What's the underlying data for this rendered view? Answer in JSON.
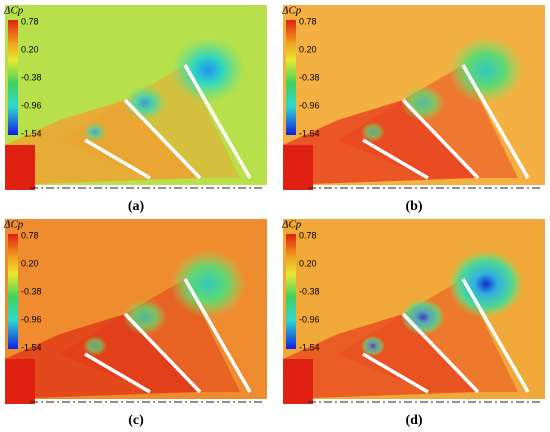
{
  "panels": [
    {
      "label": "(a)",
      "colorbar": {
        "title": "ΔCp",
        "ticks": [
          "0.78",
          "0.20",
          "-0.38",
          "-0.96",
          "-1.54"
        ]
      }
    },
    {
      "label": "(b)",
      "colorbar": {
        "title": "ΔCp",
        "ticks": [
          "0.78",
          "0.20",
          "-0.38",
          "-0.96",
          "-1.54"
        ]
      }
    },
    {
      "label": "(c)",
      "colorbar": {
        "title": "ΔCp",
        "ticks": [
          "0.78",
          "0.20",
          "-0.38",
          "-0.96",
          "-1.54"
        ]
      }
    },
    {
      "label": "(d)",
      "colorbar": {
        "title": "ΔCp",
        "ticks": [
          "0.78",
          "0.20",
          "-0.38",
          "-0.96",
          "-1.54"
        ]
      }
    }
  ]
}
